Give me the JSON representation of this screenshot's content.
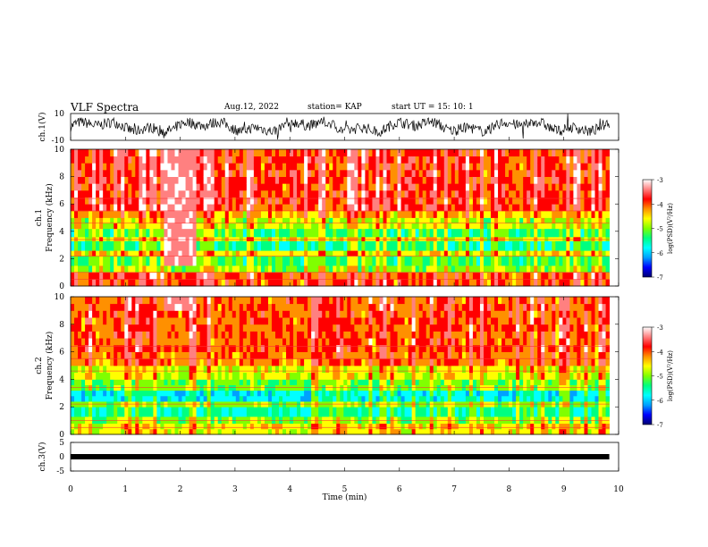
{
  "header": {
    "title": "VLF Spectra",
    "date": "Aug.12, 2022",
    "station": "station= KAP",
    "start_ut": "start  UT =   15: 10: 1"
  },
  "colors": {
    "colormap": [
      "#000070",
      "#0000ff",
      "#00a0ff",
      "#00ffff",
      "#00ff80",
      "#80ff00",
      "#ffff00",
      "#ff9000",
      "#ff0000",
      "#ff8080",
      "#ffffff"
    ],
    "wave_line": "#000000",
    "bar_fill": "#000000"
  },
  "chart_data": [
    {
      "id": "ch1-waveform",
      "type": "line",
      "ylabel": "ch.1(V)",
      "ylim": [
        -10,
        10
      ],
      "ytick_labels": [
        "10",
        "-10"
      ],
      "xlim": [
        0,
        9.83
      ],
      "description_values": "noisy oscillating signal between roughly -10 and 10 V"
    },
    {
      "id": "ch1-spectrogram",
      "type": "heatmap",
      "ylabel": "ch.1\nFrequency  (kHz)",
      "ylim": [
        0,
        10
      ],
      "ytick_labels": [
        "0",
        "2",
        "4",
        "6",
        "8",
        "10"
      ],
      "xlim": [
        0,
        9.83
      ],
      "colorbar": {
        "label": "log(PSD)(V²/Hz)",
        "range": [
          -7,
          -3
        ],
        "tick_labels": [
          "-3",
          "-4",
          "-5",
          "-6",
          "-7"
        ]
      },
      "bands_khz": [
        {
          "f": [
            0,
            1
          ],
          "level": -4.0
        },
        {
          "f": [
            1,
            1.5
          ],
          "level": -5.0
        },
        {
          "f": [
            1.5,
            2.2
          ],
          "level": -5.3
        },
        {
          "f": [
            2.2,
            2.6
          ],
          "level": -4.6
        },
        {
          "f": [
            2.6,
            3.3
          ],
          "level": -5.5
        },
        {
          "f": [
            3.3,
            3.6
          ],
          "level": -4.7
        },
        {
          "f": [
            3.6,
            4.2
          ],
          "level": -5.3
        },
        {
          "f": [
            4.2,
            5.0
          ],
          "level": -4.8
        },
        {
          "f": [
            5.0,
            5.5
          ],
          "level": -4.4
        },
        {
          "f": [
            5.5,
            10
          ],
          "level": -3.9
        }
      ],
      "burst_minutes": [
        1.72,
        2.27
      ]
    },
    {
      "id": "ch2-spectrogram",
      "type": "heatmap",
      "ylabel": "ch.2\nFrequency  (kHz)",
      "ylim": [
        0,
        10
      ],
      "ytick_labels": [
        "0",
        "2",
        "4",
        "6",
        "8",
        "10"
      ],
      "xlim": [
        0,
        9.83
      ],
      "colorbar": {
        "label": "log(PSD)(V²/Hz)",
        "range": [
          -7,
          -3
        ],
        "tick_labels": [
          "-3",
          "-4",
          "-5",
          "-6",
          "-7"
        ]
      },
      "bands_khz": [
        {
          "f": [
            0,
            0.8
          ],
          "level": -4.6
        },
        {
          "f": [
            0.8,
            1.3
          ],
          "level": -5.0
        },
        {
          "f": [
            1.3,
            2.0
          ],
          "level": -5.5
        },
        {
          "f": [
            2.0,
            2.4
          ],
          "level": -5.0
        },
        {
          "f": [
            2.4,
            3.2
          ],
          "level": -5.8
        },
        {
          "f": [
            3.2,
            4.0
          ],
          "level": -5.1
        },
        {
          "f": [
            4.0,
            5.0
          ],
          "level": -4.7
        },
        {
          "f": [
            5.0,
            6.0
          ],
          "level": -4.1
        },
        {
          "f": [
            6.0,
            10
          ],
          "level": -4.0
        }
      ],
      "burst_minutes": [
        1.72,
        2.27
      ]
    },
    {
      "id": "ch3-waveform",
      "type": "line",
      "ylabel": "ch.3(V)",
      "ylim": [
        -5,
        5
      ],
      "ytick_labels": [
        "5",
        "0",
        "-5"
      ],
      "xlim": [
        0,
        9.83
      ],
      "series": [
        {
          "values_v": [
            0.0
          ]
        }
      ]
    }
  ],
  "xaxis": {
    "label": "Time  (min)",
    "range": [
      0,
      10
    ],
    "tick_labels": [
      "0",
      "1",
      "2",
      "3",
      "4",
      "5",
      "6",
      "7",
      "8",
      "9",
      "10"
    ]
  }
}
